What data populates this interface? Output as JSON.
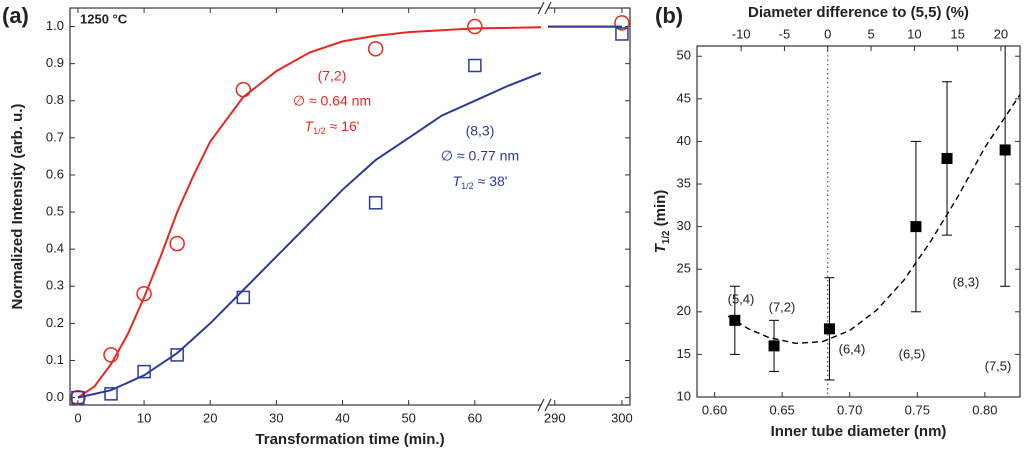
{
  "chart_data": [
    {
      "type": "scatter",
      "panel_label": "(a)",
      "condition": "1250 °C",
      "xlabel": "Transformation time (min.)",
      "ylabel": "Normalized Intensity (arb. u.)",
      "xlim": [
        -1.2,
        301.2
      ],
      "xbreak": [
        70,
        289
      ],
      "ylim": [
        -0.02,
        1.05
      ],
      "xticks": [
        0,
        10,
        20,
        30,
        40,
        50,
        60,
        290,
        300
      ],
      "yticks": [
        {
          "value": 0,
          "label": "0.0"
        },
        0.1,
        0.2,
        0.3,
        0.4,
        0.5,
        0.6,
        0.7,
        0.8,
        0.9,
        {
          "value": 1,
          "label": "1.0"
        }
      ],
      "series": [
        {
          "name": "(7,2)",
          "color": "#e8281e",
          "marker": "circle",
          "diameter": "∅ ≈ 0.64 nm",
          "half_life": {
            "symbol": "T",
            "sub": "1/2",
            "text": " ≈ 16'"
          },
          "x": [
            0,
            5,
            10,
            15,
            25,
            45,
            60,
            300
          ],
          "values": [
            0,
            0.115,
            0.28,
            0.415,
            0.83,
            0.94,
            1.0,
            1.01
          ],
          "fit_x": [
            0,
            2.5,
            5,
            7.5,
            10,
            12.5,
            15,
            17.5,
            20,
            25,
            30,
            35,
            40,
            45,
            50,
            55,
            60,
            70,
            289,
            300
          ],
          "fit": [
            0,
            0.03,
            0.09,
            0.17,
            0.27,
            0.38,
            0.5,
            0.6,
            0.69,
            0.81,
            0.88,
            0.93,
            0.96,
            0.975,
            0.985,
            0.99,
            0.995,
            0.998,
            1.0,
            1.0
          ]
        },
        {
          "name": "(8,3)",
          "color": "#2b3a9e",
          "marker": "square",
          "diameter": "∅ ≈ 0.77 nm",
          "half_life": {
            "symbol": "T",
            "sub": "1/2",
            "text": " ≈ 38'"
          },
          "x": [
            0,
            5,
            10,
            15,
            25,
            45,
            60,
            300
          ],
          "values": [
            0,
            0.01,
            0.07,
            0.115,
            0.27,
            0.525,
            0.895,
            0.98
          ],
          "fit_x": [
            0,
            5,
            10,
            15,
            20,
            25,
            30,
            35,
            40,
            45,
            50,
            55,
            60,
            65,
            70,
            289,
            300
          ],
          "fit": [
            0,
            0.02,
            0.06,
            0.12,
            0.2,
            0.29,
            0.38,
            0.47,
            0.56,
            0.64,
            0.7,
            0.76,
            0.8,
            0.84,
            0.875,
            1.0,
            1.0
          ]
        }
      ]
    },
    {
      "type": "scatter",
      "panel_label": "(b)",
      "xlabel": "Inner tube diameter (nm)",
      "ylabel": {
        "symbol": "T",
        "sub": "1/2",
        "text": " (min)"
      },
      "x2label": "Diameter difference to (5,5) (%)",
      "xlim": [
        0.587,
        0.826
      ],
      "x2lim": [
        -15.1,
        22.2
      ],
      "ylim": [
        10,
        51.2
      ],
      "xticks": [
        {
          "value": 0.6,
          "label": "0.60"
        },
        0.65,
        {
          "value": 0.7,
          "label": "0.70"
        },
        0.75,
        {
          "value": 0.8,
          "label": "0.80"
        }
      ],
      "x2ticks": [
        -10,
        -5,
        0,
        5,
        10,
        15,
        20
      ],
      "yticks": [
        10,
        15,
        20,
        25,
        30,
        35,
        40,
        45,
        50
      ],
      "reference_line": {
        "axis": "x2",
        "value": 0
      },
      "series": [
        {
          "color": "#000000",
          "marker": "filled-square",
          "labels": [
            "(5,4)",
            "(7,2)",
            "(6,4)",
            "(6,5)",
            "(8,3)",
            "(7,5)"
          ],
          "x": [
            0.615,
            0.644,
            0.685,
            0.749,
            0.772,
            0.815
          ],
          "values": [
            19,
            16,
            18,
            30,
            38,
            39
          ],
          "errors": [
            4,
            3,
            6,
            10,
            9,
            16
          ],
          "fit_x": [
            0.61,
            0.625,
            0.64,
            0.66,
            0.68,
            0.7,
            0.72,
            0.74,
            0.76,
            0.78,
            0.8,
            0.826
          ],
          "fit": [
            19.5,
            18.0,
            17.0,
            16.3,
            16.5,
            17.8,
            20.2,
            23.7,
            28.3,
            33.5,
            39.3,
            45.5
          ]
        }
      ]
    }
  ]
}
